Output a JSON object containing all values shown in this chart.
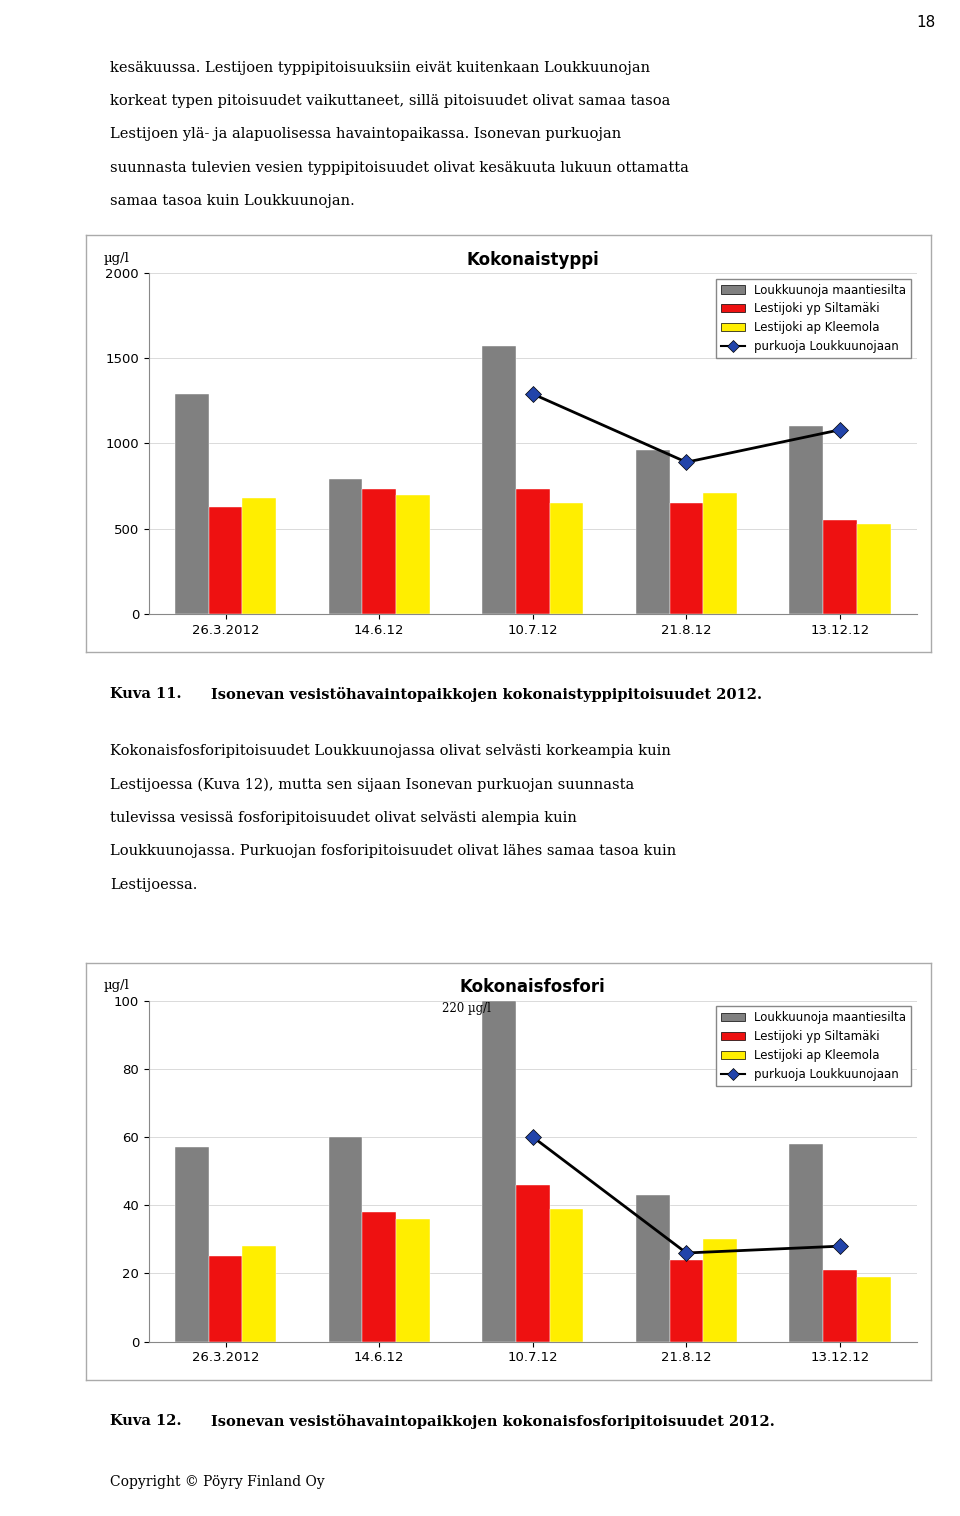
{
  "chart1": {
    "title": "Kokonaistyppi",
    "ylabel": "µg/l",
    "ylim": [
      0,
      2000
    ],
    "yticks": [
      0,
      500,
      1000,
      1500,
      2000
    ],
    "categories": [
      "26.3.2012",
      "14.6.12",
      "10.7.12",
      "21.8.12",
      "13.12.12"
    ],
    "gray_bars": [
      1290,
      790,
      1570,
      960,
      1100
    ],
    "red_bars": [
      630,
      730,
      730,
      650,
      550
    ],
    "yellow_bars": [
      680,
      700,
      650,
      710,
      530
    ],
    "line_values": [
      null,
      null,
      1290,
      890,
      1080
    ]
  },
  "chart2": {
    "title": "Kokonaisfosfori",
    "ylabel": "µg/l",
    "ylim": [
      0,
      100
    ],
    "yticks": [
      0,
      20,
      40,
      60,
      80,
      100
    ],
    "categories": [
      "26.3.2012",
      "14.6.12",
      "10.7.12",
      "21.8.12",
      "13.12.12"
    ],
    "gray_bars": [
      57,
      60,
      100,
      43,
      58
    ],
    "red_bars": [
      25,
      38,
      46,
      24,
      21
    ],
    "yellow_bars": [
      28,
      36,
      39,
      30,
      19
    ],
    "line_values": [
      null,
      null,
      60,
      26,
      28
    ],
    "annotation_text": "220 µg/l"
  },
  "legend_labels": [
    "Loukkuunoja maantiesilta",
    "Lestijoki yp Siltamäki",
    "Lestijoki ap Kleemola",
    "purkuoja Loukkuunojaan"
  ],
  "colors": {
    "gray": "#808080",
    "red": "#ee1111",
    "yellow": "#ffee00",
    "line": "#000000",
    "marker_fill": "#2244aa"
  },
  "bar_width": 0.22,
  "kuva11_label": "Kuva 11.",
  "kuva11_text": "Isonevan vesistöhavaintopaikkojen kokonaistyppipitoisuudet 2012.",
  "kuva12_label": "Kuva 12.",
  "kuva12_text": "Isonevan vesistöhavaintopaikkojen kokonaisfosforipitoisuudet 2012.",
  "paragraph1_lines": [
    "kesäkuussa. Lestijoen typpipitoisuuksiin eivät kuitenkaan Loukkuunojan",
    "korkeat typen pitoisuudet vaikuttaneet, sillä pitoisuudet olivat samaa tasoa",
    "Lestijoen ylä- ja alapuolisessa havaintopaikassa. Isonevan purkuojan",
    "suunnasta tulevien vesien typpipitoisuudet olivat kesäkuuta lukuun ottamatta",
    "samaa tasoa kuin Loukkuunojan."
  ],
  "paragraph2_lines": [
    "Kokonaisfosforipitoisuudet Loukkuunojassa olivat selvästi korkeampia kuin",
    "Lestijoessa (Kuva 12), mutta sen sijaan Isonevan purkuojan suunnasta",
    "tulevissa vesissä fosforipitoisuudet olivat selvästi alempia kuin",
    "Loukkuunojassa. Purkuojan fosforipitoisuudet olivat lähes samaa tasoa kuin",
    "Lestijoessa."
  ],
  "page_number": "18",
  "copyright_text": "Copyright © Pöyry Finland Oy",
  "background_color": "#ffffff",
  "chart_border_color": "#aaaaaa"
}
